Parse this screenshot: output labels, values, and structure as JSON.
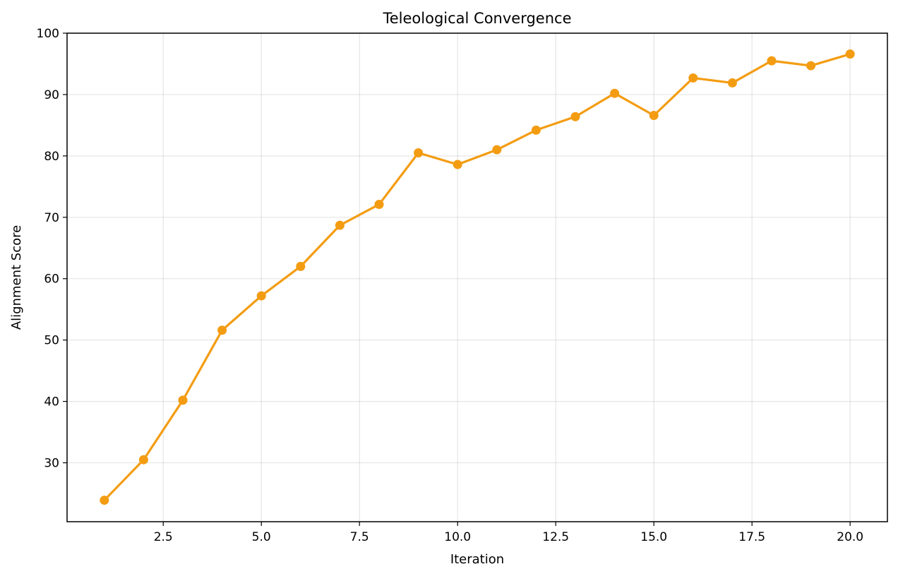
{
  "chart_data": {
    "type": "line",
    "title": "Teleological Convergence",
    "xlabel": "Iteration",
    "ylabel": "Alignment Score",
    "xlim": [
      0.05,
      20.95
    ],
    "ylim": [
      20.4,
      100
    ],
    "xticks": [
      2.5,
      5.0,
      7.5,
      10.0,
      12.5,
      15.0,
      17.5,
      20.0
    ],
    "xtick_labels": [
      "2.5",
      "5.0",
      "7.5",
      "10.0",
      "12.5",
      "15.0",
      "17.5",
      "20.0"
    ],
    "yticks": [
      30,
      40,
      50,
      60,
      70,
      80,
      90,
      100
    ],
    "ytick_labels": [
      "30",
      "40",
      "50",
      "60",
      "70",
      "80",
      "90",
      "100"
    ],
    "grid": true,
    "series": [
      {
        "color": "#F39C12",
        "marker": "circle",
        "x": [
          1,
          2,
          3,
          4,
          5,
          6,
          7,
          8,
          9,
          10,
          11,
          12,
          13,
          14,
          15,
          16,
          17,
          18,
          19,
          20
        ],
        "y": [
          23.9,
          30.5,
          40.2,
          51.6,
          57.2,
          62.0,
          68.7,
          72.1,
          80.5,
          78.6,
          81.0,
          84.2,
          86.4,
          90.2,
          86.6,
          92.7,
          91.9,
          95.5,
          94.7,
          96.6
        ]
      }
    ]
  }
}
